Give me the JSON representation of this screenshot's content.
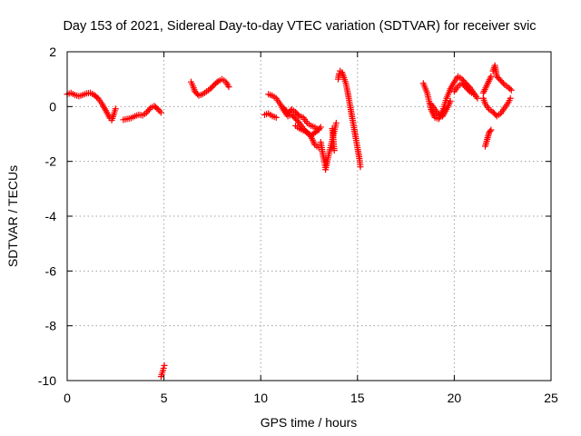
{
  "chart_data": {
    "type": "scatter",
    "title": "Day 153 of 2021, Sidereal Day-to-day VTEC variation (SDTVAR) for receiver svic",
    "xlabel": "GPS time / hours",
    "ylabel": "SDTVAR / TECUs",
    "xlim": [
      0,
      25
    ],
    "ylim": [
      -10,
      2
    ],
    "xticks": [
      0,
      5,
      10,
      15,
      20,
      25
    ],
    "yticks": [
      -10,
      -8,
      -6,
      -4,
      -2,
      0,
      2
    ],
    "grid": true,
    "marker": "plus",
    "marker_color": "#ff0000",
    "series": [
      {
        "name": "SDTVAR",
        "segments": [
          [
            [
              0.0,
              0.45
            ],
            [
              0.2,
              0.5
            ],
            [
              0.4,
              0.42
            ],
            [
              0.6,
              0.38
            ],
            [
              0.8,
              0.42
            ],
            [
              1.0,
              0.48
            ],
            [
              1.2,
              0.5
            ],
            [
              1.4,
              0.42
            ],
            [
              1.6,
              0.3
            ],
            [
              1.8,
              0.1
            ],
            [
              2.0,
              -0.15
            ],
            [
              2.2,
              -0.42
            ],
            [
              2.3,
              -0.5
            ],
            [
              2.4,
              -0.3
            ],
            [
              2.5,
              -0.08
            ]
          ],
          [
            [
              2.9,
              -0.48
            ],
            [
              3.1,
              -0.45
            ],
            [
              3.3,
              -0.42
            ],
            [
              3.5,
              -0.35
            ],
            [
              3.7,
              -0.3
            ],
            [
              3.9,
              -0.32
            ],
            [
              4.1,
              -0.22
            ],
            [
              4.3,
              -0.05
            ],
            [
              4.5,
              0.02
            ],
            [
              4.7,
              -0.1
            ],
            [
              4.85,
              -0.22
            ]
          ],
          [
            [
              4.85,
              -9.85
            ],
            [
              4.92,
              -9.7
            ],
            [
              4.98,
              -9.55
            ],
            [
              5.02,
              -9.45
            ]
          ],
          [
            [
              6.4,
              0.9
            ],
            [
              6.5,
              0.75
            ],
            [
              6.6,
              0.55
            ],
            [
              6.8,
              0.4
            ],
            [
              7.0,
              0.45
            ],
            [
              7.2,
              0.55
            ],
            [
              7.4,
              0.65
            ],
            [
              7.6,
              0.8
            ],
            [
              7.8,
              0.92
            ],
            [
              8.0,
              1.0
            ],
            [
              8.2,
              0.9
            ],
            [
              8.35,
              0.72
            ]
          ],
          [
            [
              10.2,
              -0.3
            ],
            [
              10.4,
              -0.25
            ],
            [
              10.6,
              -0.35
            ],
            [
              10.8,
              -0.4
            ]
          ],
          [
            [
              10.4,
              0.45
            ],
            [
              10.6,
              0.4
            ],
            [
              10.8,
              0.3
            ],
            [
              11.0,
              0.1
            ],
            [
              11.2,
              -0.15
            ],
            [
              11.4,
              -0.35
            ],
            [
              11.6,
              -0.3
            ],
            [
              11.8,
              -0.45
            ],
            [
              12.0,
              -0.6
            ],
            [
              12.2,
              -0.8
            ],
            [
              12.4,
              -0.95
            ],
            [
              12.6,
              -1.1
            ],
            [
              12.8,
              -1.4
            ],
            [
              13.0,
              -1.5
            ]
          ],
          [
            [
              11.2,
              -0.05
            ],
            [
              11.4,
              -0.25
            ],
            [
              11.6,
              -0.1
            ],
            [
              11.8,
              -0.2
            ],
            [
              12.0,
              -0.35
            ],
            [
              12.2,
              -0.4
            ],
            [
              12.4,
              -0.6
            ],
            [
              12.6,
              -0.7
            ],
            [
              12.8,
              -0.75
            ],
            [
              13.0,
              -0.85
            ]
          ],
          [
            [
              11.8,
              -0.7
            ],
            [
              12.0,
              -0.8
            ],
            [
              12.3,
              -0.9
            ],
            [
              12.6,
              -1.05
            ],
            [
              12.9,
              -0.9
            ],
            [
              13.1,
              -0.75
            ]
          ],
          [
            [
              13.1,
              -1.3
            ],
            [
              13.2,
              -1.7
            ],
            [
              13.3,
              -2.05
            ],
            [
              13.35,
              -2.3
            ],
            [
              13.5,
              -1.8
            ],
            [
              13.7,
              -1.2
            ],
            [
              13.8,
              -0.9
            ],
            [
              13.9,
              -0.6
            ]
          ],
          [
            [
              13.7,
              -0.8
            ],
            [
              13.75,
              -1.2
            ],
            [
              13.8,
              -1.6
            ]
          ],
          [
            [
              14.0,
              1.0
            ],
            [
              14.05,
              1.2
            ],
            [
              14.1,
              1.3
            ],
            [
              14.2,
              1.25
            ],
            [
              14.3,
              1.05
            ],
            [
              14.4,
              0.85
            ],
            [
              14.5,
              0.5
            ],
            [
              14.6,
              0.1
            ],
            [
              14.7,
              -0.3
            ],
            [
              14.8,
              -0.7
            ],
            [
              14.9,
              -1.1
            ],
            [
              15.0,
              -1.5
            ],
            [
              15.1,
              -1.9
            ],
            [
              15.15,
              -2.2
            ]
          ],
          [
            [
              18.4,
              0.85
            ],
            [
              18.6,
              0.5
            ],
            [
              18.8,
              -0.1
            ],
            [
              19.0,
              -0.4
            ],
            [
              19.2,
              -0.45
            ],
            [
              19.4,
              -0.15
            ],
            [
              19.6,
              0.3
            ],
            [
              19.8,
              0.65
            ],
            [
              20.0,
              0.9
            ],
            [
              20.2,
              1.1
            ],
            [
              20.4,
              1.0
            ],
            [
              20.6,
              0.85
            ],
            [
              20.8,
              0.7
            ],
            [
              21.0,
              0.5
            ],
            [
              21.2,
              0.3
            ]
          ],
          [
            [
              18.8,
              0.1
            ],
            [
              19.0,
              -0.1
            ],
            [
              19.2,
              -0.3
            ],
            [
              19.4,
              -0.35
            ],
            [
              19.6,
              -0.1
            ],
            [
              19.8,
              0.2
            ]
          ],
          [
            [
              20.0,
              0.55
            ],
            [
              20.2,
              0.75
            ],
            [
              20.4,
              0.85
            ],
            [
              20.6,
              0.7
            ],
            [
              20.8,
              0.55
            ],
            [
              21.0,
              0.45
            ]
          ],
          [
            [
              21.6,
              -1.45
            ],
            [
              21.7,
              -1.2
            ],
            [
              21.8,
              -0.95
            ],
            [
              21.9,
              -0.85
            ]
          ],
          [
            [
              21.5,
              0.3
            ],
            [
              21.6,
              0.1
            ],
            [
              21.8,
              -0.1
            ],
            [
              22.0,
              -0.2
            ],
            [
              22.2,
              -0.35
            ],
            [
              22.4,
              -0.25
            ],
            [
              22.6,
              -0.05
            ],
            [
              22.8,
              0.15
            ],
            [
              22.9,
              0.3
            ]
          ],
          [
            [
              21.5,
              0.5
            ],
            [
              21.7,
              0.8
            ],
            [
              21.9,
              1.1
            ]
          ],
          [
            [
              22.0,
              1.3
            ],
            [
              22.1,
              1.5
            ],
            [
              22.2,
              1.1
            ],
            [
              22.4,
              0.95
            ],
            [
              22.6,
              0.8
            ],
            [
              22.8,
              0.7
            ],
            [
              22.95,
              0.6
            ]
          ]
        ]
      }
    ]
  }
}
